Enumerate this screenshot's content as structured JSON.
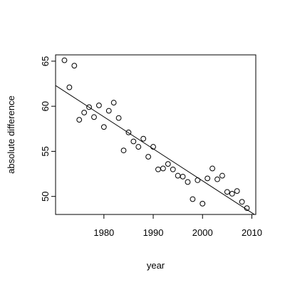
{
  "chart_data": {
    "type": "scatter",
    "title": "",
    "xlabel": "year",
    "ylabel": "absolute difference",
    "xlim": [
      1970.2,
      2010.8
    ],
    "ylim": [
      48,
      65.7
    ],
    "x_ticks": [
      1980,
      1990,
      2000,
      2010
    ],
    "y_ticks": [
      50,
      55,
      60,
      65
    ],
    "x_tick_labels": [
      "1980",
      "1990",
      "2000",
      "2010"
    ],
    "y_tick_labels": [
      "50",
      "55",
      "60",
      "65"
    ],
    "grid": false,
    "legend": "none",
    "marker": "open-circle",
    "points": [
      {
        "x": 1972,
        "y": 65.1
      },
      {
        "x": 1973,
        "y": 62.1
      },
      {
        "x": 1974,
        "y": 64.5
      },
      {
        "x": 1975,
        "y": 58.5
      },
      {
        "x": 1976,
        "y": 59.3
      },
      {
        "x": 1977,
        "y": 59.9
      },
      {
        "x": 1978,
        "y": 58.8
      },
      {
        "x": 1979,
        "y": 60.1
      },
      {
        "x": 1980,
        "y": 57.7
      },
      {
        "x": 1981,
        "y": 59.5
      },
      {
        "x": 1982,
        "y": 60.4
      },
      {
        "x": 1983,
        "y": 58.7
      },
      {
        "x": 1984,
        "y": 55.1
      },
      {
        "x": 1985,
        "y": 57.1
      },
      {
        "x": 1986,
        "y": 56.1
      },
      {
        "x": 1987,
        "y": 55.5
      },
      {
        "x": 1988,
        "y": 56.4
      },
      {
        "x": 1989,
        "y": 54.4
      },
      {
        "x": 1990,
        "y": 55.5
      },
      {
        "x": 1991,
        "y": 53.0
      },
      {
        "x": 1992,
        "y": 53.1
      },
      {
        "x": 1993,
        "y": 53.6
      },
      {
        "x": 1994,
        "y": 53.0
      },
      {
        "x": 1995,
        "y": 52.3
      },
      {
        "x": 1996,
        "y": 52.2
      },
      {
        "x": 1997,
        "y": 51.6
      },
      {
        "x": 1998,
        "y": 49.7
      },
      {
        "x": 1999,
        "y": 51.8
      },
      {
        "x": 2000,
        "y": 49.2
      },
      {
        "x": 2001,
        "y": 52.0
      },
      {
        "x": 2002,
        "y": 53.1
      },
      {
        "x": 2003,
        "y": 51.9
      },
      {
        "x": 2004,
        "y": 52.3
      },
      {
        "x": 2005,
        "y": 50.5
      },
      {
        "x": 2006,
        "y": 50.3
      },
      {
        "x": 2007,
        "y": 50.6
      },
      {
        "x": 2008,
        "y": 49.4
      },
      {
        "x": 2009,
        "y": 48.7
      }
    ],
    "regression_line": {
      "x": [
        1970.2,
        2010.8
      ],
      "y": [
        62.3,
        47.9
      ]
    }
  }
}
